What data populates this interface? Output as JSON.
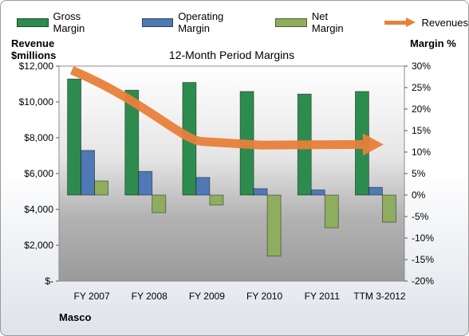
{
  "chart_data": {
    "type": "bar",
    "title": "12-Month Period Margins",
    "company": "Masco",
    "categories": [
      "FY 2007",
      "FY 2008",
      "FY 2009",
      "FY 2010",
      "FY 2011",
      "TTM 3-2012"
    ],
    "left_axis": {
      "label_line1": "Revenue",
      "label_line2": "$millions",
      "ylim": [
        0,
        12000
      ],
      "ticks": [
        "$-",
        "$2,000",
        "$4,000",
        "$6,000",
        "$8,000",
        "$10,000",
        "$12,000"
      ]
    },
    "right_axis": {
      "label": "Margin %",
      "ylim": [
        -20,
        30
      ],
      "ticks": [
        "-20%",
        "-15%",
        "-10%",
        "-5%",
        "0%",
        "5%",
        "10%",
        "15%",
        "20%",
        "25%",
        "30%"
      ]
    },
    "series": [
      {
        "name": "Gross Margin",
        "axis": "right",
        "color": "#2e8b4e",
        "values": [
          27.0,
          24.4,
          26.2,
          24.1,
          23.5,
          24.1
        ]
      },
      {
        "name": "Operating Margin",
        "axis": "right",
        "color": "#4f79b5",
        "values": [
          10.4,
          5.5,
          4.1,
          1.5,
          1.2,
          1.8
        ]
      },
      {
        "name": "Net Margin",
        "axis": "right",
        "color": "#8fad5f",
        "values": [
          3.3,
          -4.1,
          -2.3,
          -14.2,
          -7.6,
          -6.3
        ]
      },
      {
        "name": "Revenues",
        "axis": "left",
        "type": "arrow-line",
        "color": "#e8803a",
        "values": [
          11770,
          9600,
          7790,
          7590,
          7610,
          7620
        ]
      }
    ],
    "grid": false,
    "legend": "top"
  }
}
